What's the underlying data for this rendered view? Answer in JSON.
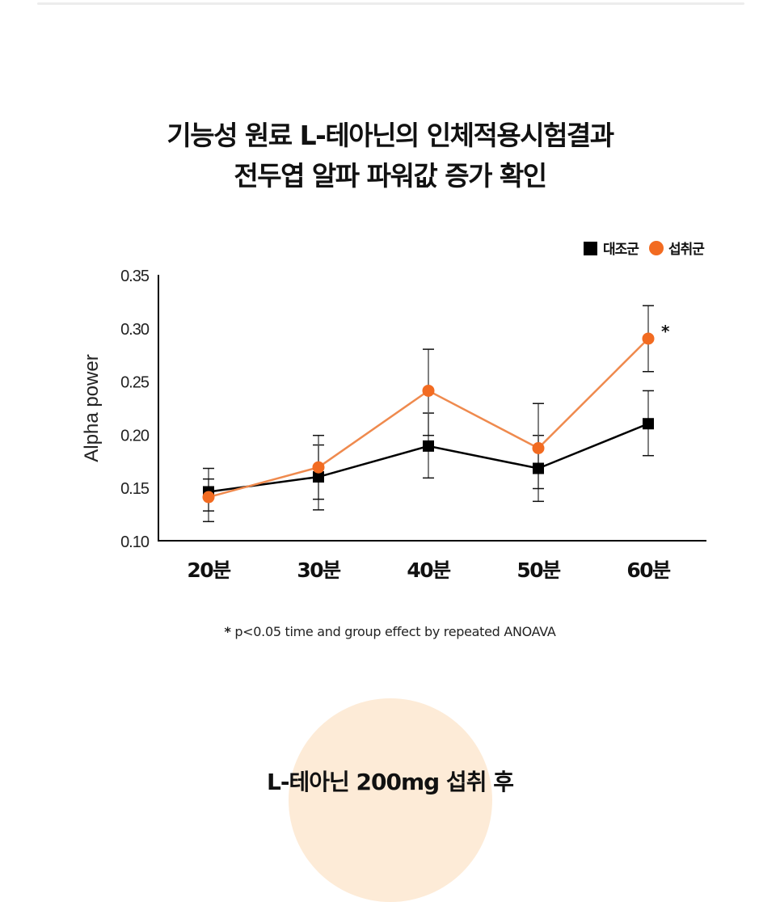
{
  "title": {
    "line1": "기능성 원료 L-테아닌의 인체적용시험결과",
    "line2": "전두엽 알파 파워값 증가 확인"
  },
  "footnote": {
    "star": "*",
    "text": " p<0.05 time and group effect by repeated ANOAVA"
  },
  "bottom_heading": "L-테아닌 200mg 섭취 후",
  "colors": {
    "control": "#000000",
    "treatment": "#f26b21",
    "treatment_line": "#ef8a4e",
    "error_bar": "#333333",
    "circle_bg": "#fdebd7"
  },
  "chart_data": {
    "type": "line",
    "title": "",
    "xlabel": "",
    "ylabel": "Alpha power",
    "categories": [
      "20분",
      "30분",
      "40분",
      "50분",
      "60분"
    ],
    "ylim": [
      0.1,
      0.35
    ],
    "yticks": [
      "0.10",
      "0.15",
      "0.20",
      "0.25",
      "0.30",
      "0.35"
    ],
    "ytick_values": [
      0.1,
      0.15,
      0.2,
      0.25,
      0.3,
      0.35
    ],
    "grid": false,
    "legend_position": "top-right",
    "series": [
      {
        "name": "대조군",
        "marker": "square",
        "values": [
          0.146,
          0.16,
          0.189,
          0.168,
          0.21
        ],
        "err_low": [
          0.118,
          0.129,
          0.159,
          0.137,
          0.18
        ],
        "err_high": [
          0.168,
          0.19,
          0.22,
          0.199,
          0.241
        ]
      },
      {
        "name": "섭취군",
        "marker": "circle",
        "values": [
          0.141,
          0.169,
          0.241,
          0.187,
          0.29
        ],
        "err_low": [
          0.128,
          0.139,
          0.199,
          0.149,
          0.259
        ],
        "err_high": [
          0.158,
          0.199,
          0.28,
          0.229,
          0.321
        ]
      }
    ],
    "annotations": [
      {
        "category": "60분",
        "series": "섭취군",
        "text": "*"
      }
    ]
  }
}
